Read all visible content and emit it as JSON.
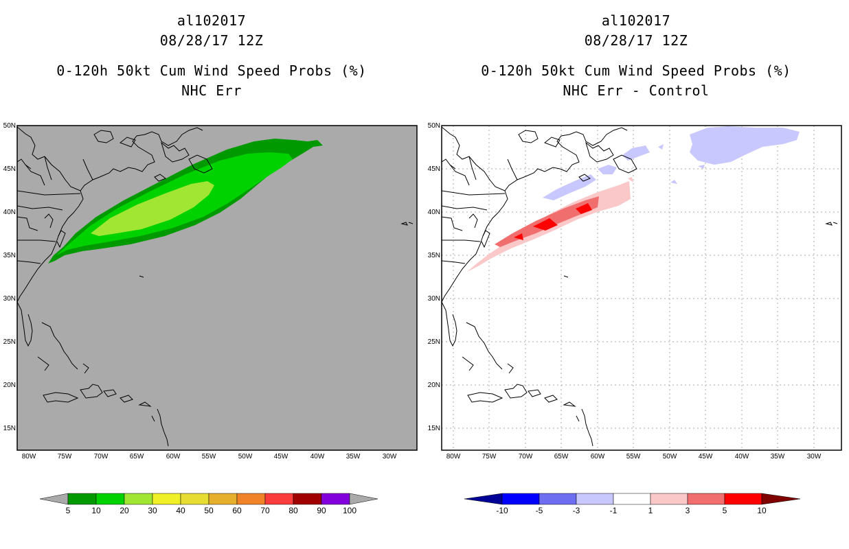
{
  "left_panel": {
    "storm_id": "al102017",
    "datetime": "08/28/17 12Z",
    "product": "0-120h 50kt Cum Wind Speed Probs (%)",
    "subtitle": "NHC Err",
    "background_color": "#aaaaaa",
    "colorbar": {
      "labels": [
        "5",
        "10",
        "20",
        "30",
        "40",
        "50",
        "60",
        "70",
        "80",
        "90",
        "100"
      ],
      "colors": [
        "#009a00",
        "#00d200",
        "#a0e632",
        "#f0f028",
        "#e6dc32",
        "#e6af2d",
        "#f08228",
        "#fa3c3c",
        "#a00000",
        "#8200dc"
      ]
    }
  },
  "right_panel": {
    "storm_id": "al102017",
    "datetime": "08/28/17 12Z",
    "product": "0-120h 50kt Cum Wind Speed Probs (%)",
    "subtitle": "NHC Err - Control",
    "background_color": "#ffffff",
    "colorbar": {
      "labels": [
        "-10",
        "-5",
        "-3",
        "-1",
        "1",
        "3",
        "5",
        "10"
      ],
      "colors": [
        "#0000c8",
        "#0000ff",
        "#6e6ef0",
        "#c8c8ff",
        "#ffffff",
        "#fac8c8",
        "#f06e6e",
        "#ff0000",
        "#a00000"
      ],
      "low_end_color": "#000096",
      "high_end_color": "#800000"
    }
  },
  "axes": {
    "lat_labels": [
      "50N",
      "45N",
      "40N",
      "35N",
      "30N",
      "25N",
      "20N",
      "15N"
    ],
    "lon_labels": [
      "80W",
      "75W",
      "70W",
      "65W",
      "60W",
      "55W",
      "50W",
      "45W",
      "40W",
      "35W",
      "30W"
    ]
  }
}
